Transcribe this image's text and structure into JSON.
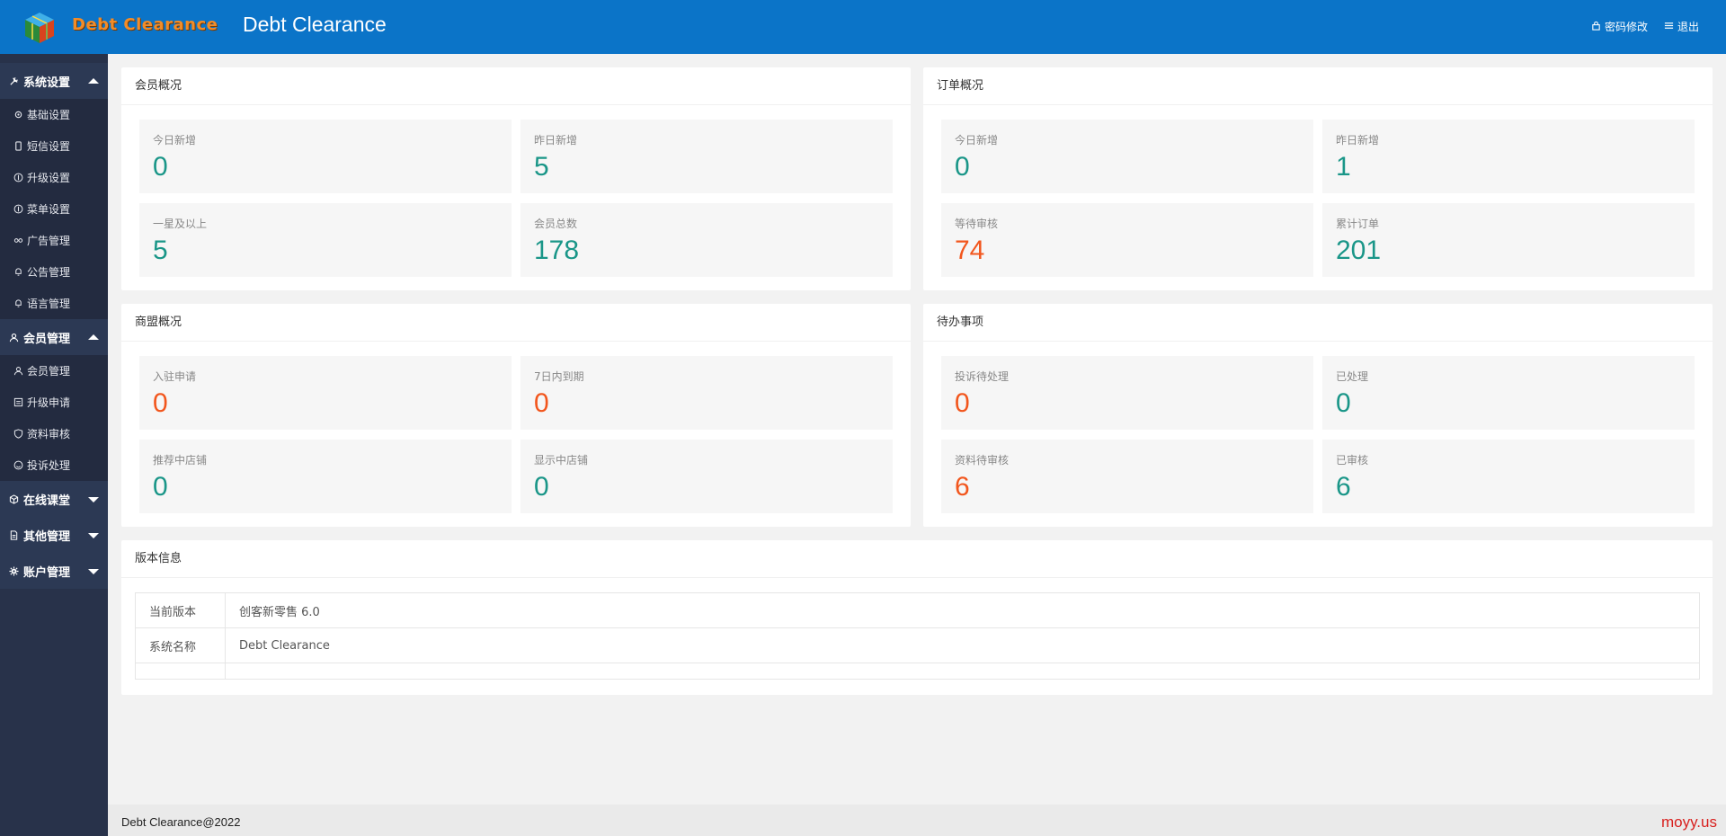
{
  "header": {
    "logo_text": "Debt Clearance",
    "title": "Debt Clearance",
    "change_password": "密码修改",
    "logout": "退出"
  },
  "sidebar": {
    "groups": [
      {
        "label": "系统设置",
        "icon": "tools-icon",
        "open": true,
        "items": [
          {
            "label": "基础设置",
            "icon": "gear-icon"
          },
          {
            "label": "短信设置",
            "icon": "phone-icon"
          },
          {
            "label": "升级设置",
            "icon": "upgrade-icon"
          },
          {
            "label": "菜单设置",
            "icon": "menu-icon"
          },
          {
            "label": "广告管理",
            "icon": "link-icon"
          },
          {
            "label": "公告管理",
            "icon": "bell-icon"
          },
          {
            "label": "语言管理",
            "icon": "bell-icon"
          }
        ]
      },
      {
        "label": "会员管理",
        "icon": "user-icon",
        "open": true,
        "items": [
          {
            "label": "会员管理",
            "icon": "user-icon"
          },
          {
            "label": "升级申请",
            "icon": "form-icon"
          },
          {
            "label": "资料审核",
            "icon": "shield-icon"
          },
          {
            "label": "投诉处理",
            "icon": "smile-icon"
          }
        ]
      },
      {
        "label": "在线课堂",
        "icon": "cube-icon",
        "open": false,
        "items": []
      },
      {
        "label": "其他管理",
        "icon": "file-icon",
        "open": false,
        "items": []
      },
      {
        "label": "账户管理",
        "icon": "gear-icon",
        "open": false,
        "items": []
      }
    ]
  },
  "member_overview": {
    "title": "会员概况",
    "stats": [
      {
        "label": "今日新增",
        "value": "0",
        "color": "#1a9688"
      },
      {
        "label": "昨日新增",
        "value": "5",
        "color": "#1a9688"
      },
      {
        "label": "一星及以上",
        "value": "5",
        "color": "#1a9688"
      },
      {
        "label": "会员总数",
        "value": "178",
        "color": "#1a9688"
      }
    ]
  },
  "order_overview": {
    "title": "订单概况",
    "stats": [
      {
        "label": "今日新增",
        "value": "0",
        "color": "#1a9688"
      },
      {
        "label": "昨日新增",
        "value": "1",
        "color": "#1a9688"
      },
      {
        "label": "等待审核",
        "value": "74",
        "color": "#f2561d"
      },
      {
        "label": "累计订单",
        "value": "201",
        "color": "#1a9688"
      }
    ]
  },
  "merchant_overview": {
    "title": "商盟概况",
    "stats": [
      {
        "label": "入驻申请",
        "value": "0",
        "color": "#f2561d"
      },
      {
        "label": "7日内到期",
        "value": "0",
        "color": "#f2561d"
      },
      {
        "label": "推荐中店铺",
        "value": "0",
        "color": "#1a9688"
      },
      {
        "label": "显示中店铺",
        "value": "0",
        "color": "#1a9688"
      }
    ]
  },
  "todo": {
    "title": "待办事项",
    "stats": [
      {
        "label": "投诉待处理",
        "value": "0",
        "color": "#f2561d"
      },
      {
        "label": "已处理",
        "value": "0",
        "color": "#1a9688"
      },
      {
        "label": "资料待审核",
        "value": "6",
        "color": "#f2561d"
      },
      {
        "label": "已审核",
        "value": "6",
        "color": "#1a9688"
      }
    ]
  },
  "version_info": {
    "title": "版本信息",
    "rows": [
      {
        "key": "当前版本",
        "value": "创客新零售 6.0"
      },
      {
        "key": "系统名称",
        "value": "Debt Clearance"
      }
    ]
  },
  "footer": {
    "copyright": "Debt Clearance@2022",
    "brand": "moyy.us"
  }
}
